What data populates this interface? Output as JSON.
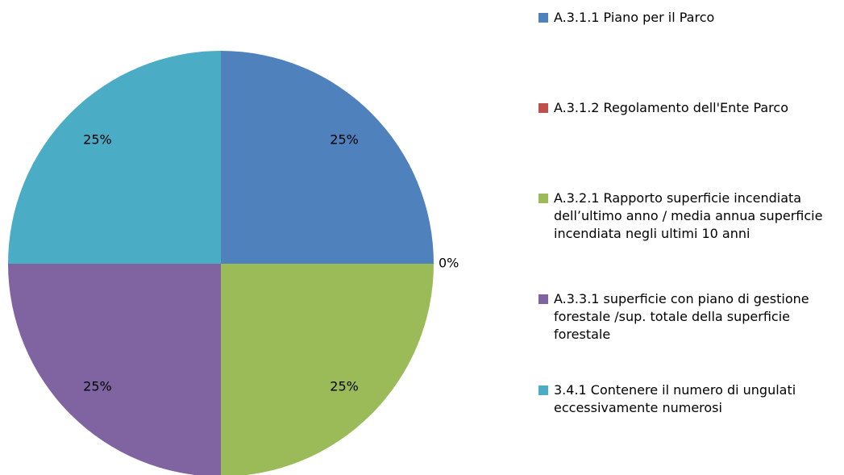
{
  "chart_data": {
    "type": "pie",
    "categories": [
      "A.3.1.1 Piano per il Parco",
      "A.3.1.2 Regolamento dell'Ente Parco",
      "A.3.2.1 Rapporto superficie incendiata dell’ultimo anno / media annua superficie incendiata negli ultimi 10 anni",
      "A.3.3.1 superficie con piano di gestione forestale /sup. totale della superficie forestale",
      "3.4.1 Contenere il numero di ungulati eccessivamente numerosi"
    ],
    "values": [
      25,
      0,
      25,
      25,
      25
    ],
    "value_labels": [
      "25%",
      "0%",
      "25%",
      "25%",
      "25%"
    ],
    "colors": [
      "#4f81bd",
      "#c0504d",
      "#9bbb59",
      "#8064a2",
      "#4bacc6"
    ],
    "legend": "right"
  }
}
